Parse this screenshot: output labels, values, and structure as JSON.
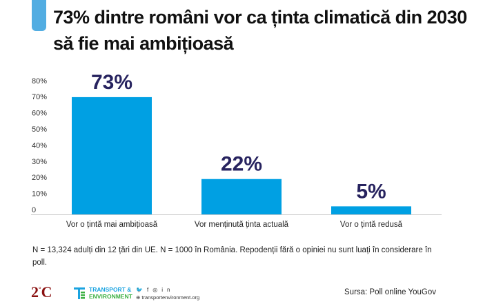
{
  "title": "73% dintre români vor ca ținta climatică din 2030 să fie mai ambițioasă",
  "chart_data": {
    "type": "bar",
    "title": "73% dintre români vor ca ținta climatică din 2030 să fie mai ambițioasă",
    "categories": [
      "Vor o țintă mai ambițioasă",
      "Vor menținută ținta actuală",
      "Vor o țintă redusă"
    ],
    "values": [
      73,
      22,
      5
    ],
    "data_labels": [
      "73%",
      "22%",
      "5%"
    ],
    "yticks": [
      "0",
      "10%",
      "20%",
      "30%",
      "40%",
      "50%",
      "60%",
      "70%",
      "80%"
    ],
    "ylim": [
      0,
      80
    ],
    "xlabel": "",
    "ylabel": "",
    "grid": false,
    "bar_color": "#00a0e3",
    "label_color": "#27235f"
  },
  "footnote": "N = 13,324 adulți din 12 țări din UE. N = 1000 în România. Repodenții fără o opiniei nu sunt luați în considerare în poll.",
  "footer": {
    "logo_2c": "2°C",
    "te_line1": "TRANSPORT &",
    "te_line2": "ENVIRONMENT",
    "social_icons": [
      "twitter-icon",
      "facebook-icon",
      "instagram-icon",
      "linkedin-icon"
    ],
    "website": "transportenvironment.org",
    "source": "Sursa: Poll online YouGov"
  }
}
